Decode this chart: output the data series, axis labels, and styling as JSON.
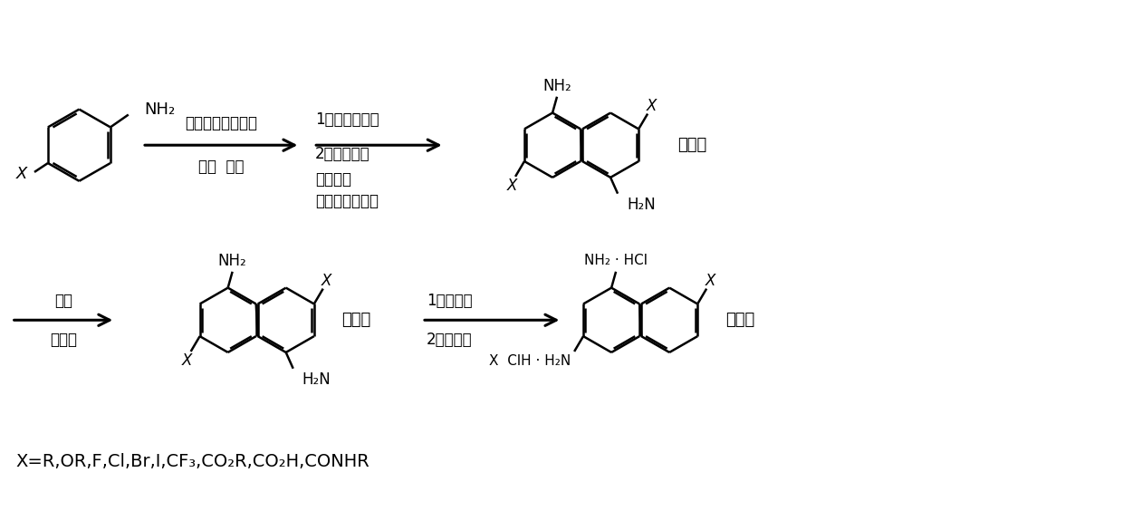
{
  "bg_color": "#ffffff",
  "text_color": "#000000",
  "line_color": "#000000",
  "line_width": 1.8,
  "arrow1_label_top": "过渡金属盐催化剂",
  "arrow1_label_bot": "醋酸  氧气",
  "arrow2_label_top": "1）亚硫酸氢钠",
  "arrow2_label_mid": "2）乙酸乙酯",
  "arrow2_label_l1": "加热溶解",
  "arrow2_label_l2": "过滤、滤液蒸干",
  "label_cu": "（粗）",
  "label_pure1": "（纯）",
  "label_pure2": "（纯）",
  "arrow3_label_top": "甲苯",
  "arrow3_label_bot": "重结晶",
  "arrow4_label_top": "1）稀盐酸",
  "arrow4_label_bot": "2）浓盐酸",
  "bottom_text": "X=R,OR,F,Cl,Br,I,CF₃,CO₂R,CO₂H,CONHR",
  "font_size_main": 13,
  "font_size_small": 12,
  "font_size_bottom": 14
}
